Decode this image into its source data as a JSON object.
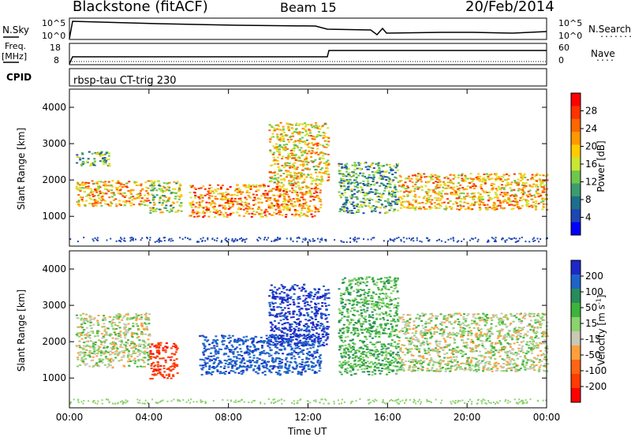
{
  "header": {
    "station": "Blackstone (fitACF)",
    "beam": "Beam 15",
    "date": "20/Feb/2014"
  },
  "top_panels": {
    "nsky_label": "N.Sky",
    "nsearch_label": "N.Search",
    "freq_label_1": "Freq.",
    "freq_label_2": "[MHz]",
    "nave_label": "Nave",
    "cpid_label": "CPID",
    "program_name": "rbsp-tau CT-trig 230",
    "noise_ticks_left": [
      "10^5",
      "10^0"
    ],
    "noise_ticks_right": [
      "10^5",
      "10^0"
    ],
    "freq_ticks": [
      "18",
      "8"
    ],
    "nave_ticks": [
      "60",
      "0"
    ]
  },
  "chart_data": [
    {
      "type": "heatmap",
      "panel": "power",
      "ylabel": "Slant Range [km]",
      "yticks": [
        1000,
        2000,
        3000,
        4000
      ],
      "ylim": [
        180,
        4500
      ],
      "xticks": [
        "00:00",
        "04:00",
        "08:00",
        "12:00",
        "16:00",
        "20:00",
        "00:00"
      ],
      "colorbar": {
        "label": "Power [dB]",
        "ticks": [
          "28",
          "24",
          "20",
          "16",
          "12",
          "8",
          "4"
        ],
        "colors": [
          "#ff0000",
          "#ff3300",
          "#ff6600",
          "#ff9900",
          "#ffcc00",
          "#c8e632",
          "#6ec84b",
          "#3c9c6e",
          "#1e6e8c",
          "#1e46b4",
          "#0000ff"
        ]
      },
      "regions": [
        {
          "t0": 0.3,
          "t1": 4.0,
          "r0": 1300,
          "r1": 2000,
          "value": 20
        },
        {
          "t0": 0.3,
          "t1": 2.0,
          "r0": 2400,
          "r1": 2800,
          "value": 10
        },
        {
          "t0": 4.0,
          "t1": 5.6,
          "r0": 1100,
          "r1": 2000,
          "value": 14
        },
        {
          "t0": 6.0,
          "t1": 12.6,
          "r0": 1000,
          "r1": 1900,
          "value": 22
        },
        {
          "t0": 10.0,
          "t1": 13.0,
          "r0": 1900,
          "r1": 3600,
          "value": 18
        },
        {
          "t0": 13.5,
          "t1": 16.5,
          "r0": 1100,
          "r1": 2500,
          "value": 10
        },
        {
          "t0": 16.5,
          "t1": 24.0,
          "r0": 1200,
          "r1": 2200,
          "value": 20
        }
      ]
    },
    {
      "type": "heatmap",
      "panel": "velocity",
      "ylabel": "Slant Range [km]",
      "yticks": [
        1000,
        2000,
        3000,
        4000
      ],
      "ylim": [
        180,
        4500
      ],
      "xticks": [
        "00:00",
        "04:00",
        "08:00",
        "12:00",
        "16:00",
        "20:00",
        "00:00"
      ],
      "xlabel": "Time UT",
      "colorbar": {
        "label": "Velocity [m s",
        "label_sup": "-1",
        "label_end": "]",
        "ticks": [
          "200",
          "100",
          "50",
          "15",
          "-15",
          "-50",
          "-100",
          "-200"
        ],
        "colors": [
          "#1e28c8",
          "#1e64c8",
          "#288c5a",
          "#3cb43c",
          "#8cd26e",
          "#c8c8b4",
          "#ffa03c",
          "#ff6414",
          "#ff3c00",
          "#ff0000"
        ]
      },
      "regions": [
        {
          "t0": 0.3,
          "t1": 4.0,
          "r0": 1300,
          "r1": 2800,
          "value": 0
        },
        {
          "t0": 4.0,
          "t1": 5.4,
          "r0": 1000,
          "r1": 2000,
          "value": -150
        },
        {
          "t0": 6.5,
          "t1": 12.6,
          "r0": 1100,
          "r1": 2200,
          "value": 150
        },
        {
          "t0": 10.0,
          "t1": 13.0,
          "r0": 1900,
          "r1": 3600,
          "value": 180
        },
        {
          "t0": 13.5,
          "t1": 16.5,
          "r0": 1100,
          "r1": 3800,
          "value": 30
        },
        {
          "t0": 16.5,
          "t1": 24.0,
          "r0": 1200,
          "r1": 2800,
          "value": 0
        }
      ]
    }
  ]
}
